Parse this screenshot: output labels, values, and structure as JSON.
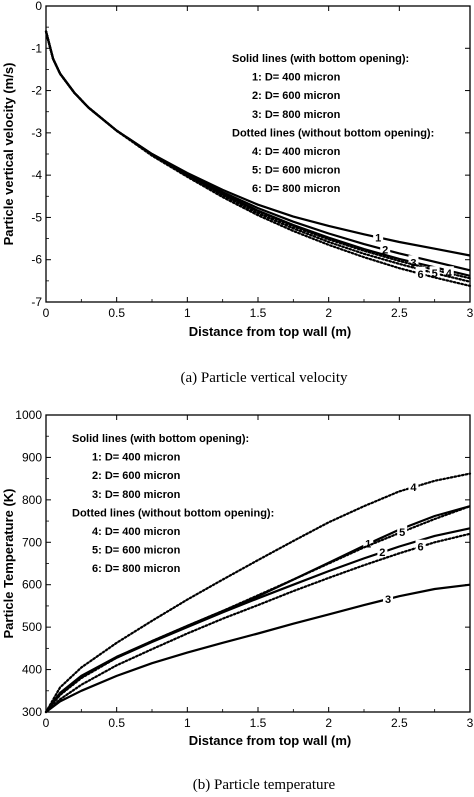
{
  "chart_data": [
    {
      "type": "line",
      "caption": "(a) Particle vertical velocity",
      "xlabel": "Distance from top wall (m)",
      "ylabel": "Particle vertical velocity (m/s)",
      "xlim": [
        0,
        3
      ],
      "ylim": [
        -7,
        0
      ],
      "xticks": [
        0,
        0.5,
        1,
        1.5,
        2,
        2.5,
        3
      ],
      "xticklabels": [
        "0",
        "0.5",
        "1",
        "1.5",
        "2",
        "2.5",
        "3"
      ],
      "yticks": [
        0,
        -1,
        -2,
        -3,
        -4,
        -5,
        -6,
        -7
      ],
      "yticklabels": [
        "0",
        "-1",
        "-2",
        "-3",
        "-4",
        "-5",
        "-6",
        "-7"
      ],
      "legend": [
        "Solid lines (with bottom opening):",
        "1: D= 400 micron",
        "2: D= 600 micron",
        "3: D= 800 micron",
        "Dotted lines (without bottom opening):",
        "4: D= 400 micron",
        "5: D= 600 micron",
        "6: D= 800 micron"
      ],
      "legend_placement": "top-right",
      "x": [
        0,
        0.05,
        0.1,
        0.2,
        0.3,
        0.5,
        0.75,
        1.0,
        1.25,
        1.5,
        1.75,
        2.0,
        2.25,
        2.5,
        2.75,
        3.0
      ],
      "series": [
        {
          "name": "1",
          "style": "solid",
          "values": [
            -0.6,
            -1.25,
            -1.6,
            -2.05,
            -2.4,
            -2.95,
            -3.5,
            -3.95,
            -4.35,
            -4.7,
            -4.98,
            -5.2,
            -5.4,
            -5.58,
            -5.74,
            -5.9
          ],
          "label_at": 2.35
        },
        {
          "name": "2",
          "style": "solid",
          "values": [
            -0.6,
            -1.25,
            -1.6,
            -2.05,
            -2.4,
            -2.95,
            -3.5,
            -3.97,
            -4.4,
            -4.78,
            -5.1,
            -5.38,
            -5.63,
            -5.85,
            -6.05,
            -6.25
          ],
          "label_at": 2.4
        },
        {
          "name": "3",
          "style": "solid",
          "values": [
            -0.6,
            -1.25,
            -1.6,
            -2.05,
            -2.4,
            -2.95,
            -3.51,
            -3.99,
            -4.44,
            -4.84,
            -5.18,
            -5.48,
            -5.75,
            -5.98,
            -6.18,
            -6.38
          ],
          "label_at": 2.6
        },
        {
          "name": "4",
          "style": "dotted",
          "values": [
            -0.6,
            -1.25,
            -1.6,
            -2.05,
            -2.4,
            -2.95,
            -3.52,
            -4.0,
            -4.45,
            -4.86,
            -5.21,
            -5.52,
            -5.79,
            -6.03,
            -6.24,
            -6.44
          ],
          "label_at": 2.85
        },
        {
          "name": "5",
          "style": "dotted",
          "values": [
            -0.6,
            -1.25,
            -1.6,
            -2.05,
            -2.4,
            -2.95,
            -3.53,
            -4.02,
            -4.48,
            -4.9,
            -5.26,
            -5.58,
            -5.86,
            -6.1,
            -6.32,
            -6.52
          ],
          "label_at": 2.75
        },
        {
          "name": "6",
          "style": "dotted",
          "values": [
            -0.6,
            -1.25,
            -1.6,
            -2.05,
            -2.4,
            -2.95,
            -3.54,
            -4.04,
            -4.52,
            -4.95,
            -5.32,
            -5.65,
            -5.94,
            -6.2,
            -6.42,
            -6.62
          ],
          "label_at": 2.65
        }
      ]
    },
    {
      "type": "line",
      "caption": "(b) Particle temperature",
      "xlabel": "Distance from top wall (m)",
      "ylabel": "Particle Temperature (K)",
      "xlim": [
        0,
        3
      ],
      "ylim": [
        300,
        1000
      ],
      "xticks": [
        0,
        0.5,
        1,
        1.5,
        2,
        2.5,
        3
      ],
      "xticklabels": [
        "0",
        "0.5",
        "1",
        "1.5",
        "2",
        "2.5",
        "3"
      ],
      "yticks": [
        300,
        400,
        500,
        600,
        700,
        800,
        900,
        1000
      ],
      "yticklabels": [
        "300",
        "400",
        "500",
        "600",
        "700",
        "800",
        "900",
        "1000"
      ],
      "legend": [
        "Solid lines (with bottom opening):",
        "1: D= 400 micron",
        "2: D= 600 micron",
        "3: D= 800 micron",
        "Dotted lines (without bottom opening):",
        "4: D= 400 micron",
        "5: D= 600 micron",
        "6: D= 800 micron"
      ],
      "legend_placement": "top-left",
      "x": [
        0,
        0.1,
        0.25,
        0.5,
        0.75,
        1.0,
        1.25,
        1.5,
        1.75,
        2.0,
        2.25,
        2.5,
        2.75,
        3.0
      ],
      "series": [
        {
          "name": "1",
          "style": "solid",
          "values": [
            300,
            345,
            385,
            430,
            467,
            503,
            538,
            573,
            612,
            652,
            692,
            730,
            762,
            785
          ],
          "label_at": 2.28
        },
        {
          "name": "2",
          "style": "solid",
          "values": [
            300,
            343,
            383,
            428,
            465,
            500,
            535,
            568,
            600,
            632,
            662,
            690,
            715,
            733
          ],
          "label_at": 2.38
        },
        {
          "name": "3",
          "style": "solid",
          "values": [
            300,
            325,
            350,
            385,
            415,
            440,
            463,
            485,
            508,
            530,
            552,
            573,
            590,
            600
          ],
          "label_at": 2.42
        },
        {
          "name": "4",
          "style": "dotted",
          "values": [
            300,
            358,
            405,
            463,
            515,
            565,
            612,
            658,
            703,
            747,
            785,
            820,
            845,
            862
          ],
          "label_at": 2.6
        },
        {
          "name": "5",
          "style": "dotted",
          "values": [
            300,
            340,
            380,
            428,
            467,
            503,
            538,
            575,
            612,
            650,
            688,
            722,
            755,
            785
          ],
          "label_at": 2.52
        },
        {
          "name": "6",
          "style": "dotted",
          "values": [
            300,
            330,
            364,
            410,
            448,
            485,
            520,
            552,
            585,
            616,
            646,
            674,
            700,
            720
          ],
          "label_at": 2.65
        }
      ]
    }
  ]
}
